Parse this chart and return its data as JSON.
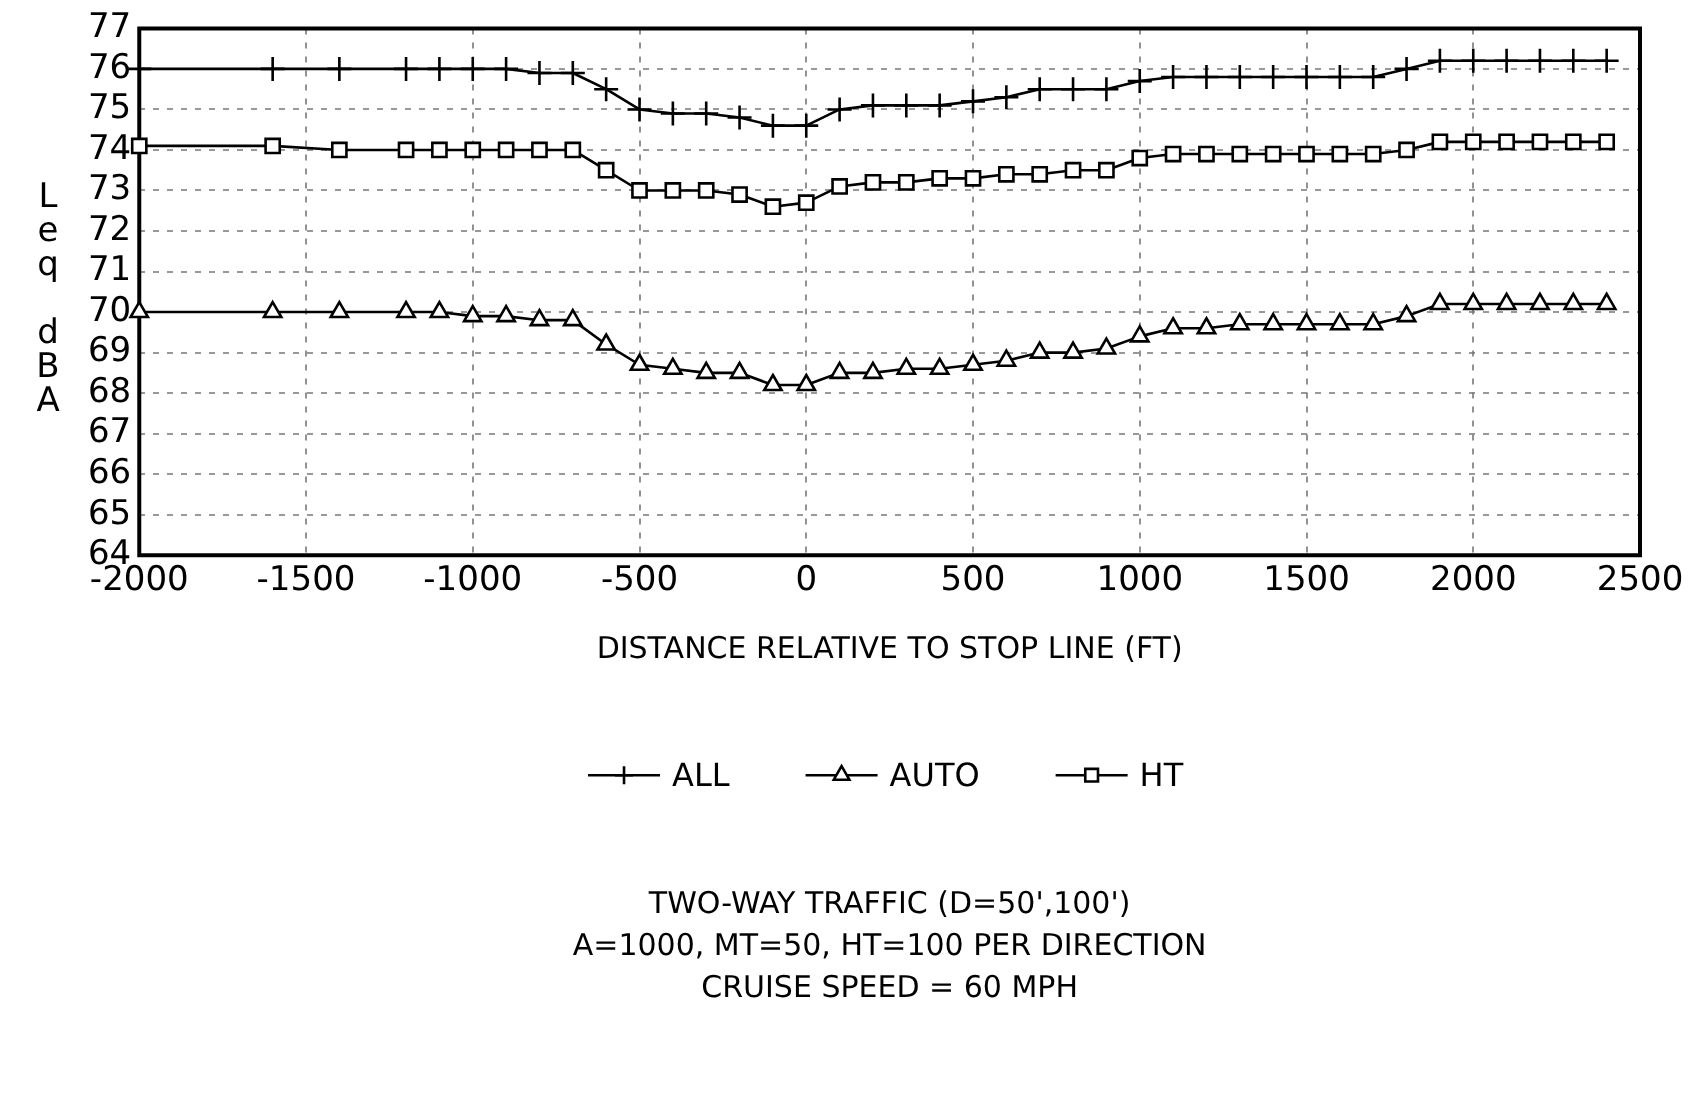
{
  "chart_data": {
    "type": "line",
    "xlabel": "DISTANCE RELATIVE TO STOP LINE (FT)",
    "ylabel": "Leq dBA",
    "x": [
      -2000,
      -1600,
      -1400,
      -1200,
      -1100,
      -1000,
      -900,
      -800,
      -700,
      -600,
      -500,
      -400,
      -300,
      -200,
      -100,
      0,
      100,
      200,
      300,
      400,
      500,
      600,
      700,
      800,
      900,
      1000,
      1100,
      1200,
      1300,
      1400,
      1500,
      1600,
      1700,
      1800,
      1900,
      2000,
      2100,
      2200,
      2300,
      2400
    ],
    "series": [
      {
        "name": "ALL",
        "color": "#000000",
        "marker": "cross",
        "values": [
          76.0,
          76.0,
          76.0,
          76.0,
          76.0,
          76.0,
          76.0,
          75.9,
          75.9,
          75.5,
          75.0,
          74.9,
          74.9,
          74.8,
          74.6,
          74.6,
          75.0,
          75.1,
          75.1,
          75.1,
          75.2,
          75.3,
          75.5,
          75.5,
          75.5,
          75.7,
          75.8,
          75.8,
          75.8,
          75.8,
          75.8,
          75.8,
          75.8,
          76.0,
          76.2,
          76.2,
          76.2,
          76.2,
          76.2,
          76.2
        ]
      },
      {
        "name": "AUTO",
        "color": "#000000",
        "marker": "triangle",
        "values": [
          70.0,
          70.0,
          70.0,
          70.0,
          70.0,
          69.9,
          69.9,
          69.8,
          69.8,
          69.2,
          68.7,
          68.6,
          68.5,
          68.5,
          68.2,
          68.2,
          68.5,
          68.5,
          68.6,
          68.6,
          68.7,
          68.8,
          69.0,
          69.0,
          69.1,
          69.4,
          69.6,
          69.6,
          69.7,
          69.7,
          69.7,
          69.7,
          69.7,
          69.9,
          70.2,
          70.2,
          70.2,
          70.2,
          70.2,
          70.2
        ]
      },
      {
        "name": "HT",
        "color": "#000000",
        "marker": "square",
        "values": [
          74.1,
          74.1,
          74.0,
          74.0,
          74.0,
          74.0,
          74.0,
          74.0,
          74.0,
          73.5,
          73.0,
          73.0,
          73.0,
          72.9,
          72.6,
          72.7,
          73.1,
          73.2,
          73.2,
          73.3,
          73.3,
          73.4,
          73.4,
          73.5,
          73.5,
          73.8,
          73.9,
          73.9,
          73.9,
          73.9,
          73.9,
          73.9,
          73.9,
          74.0,
          74.2,
          74.2,
          74.2,
          74.2,
          74.2,
          74.2
        ]
      }
    ],
    "xlim": [
      -2000,
      2500
    ],
    "xticks": [
      -2000,
      -1500,
      -1000,
      -500,
      0,
      500,
      1000,
      1500,
      2000,
      2500
    ],
    "ylim": [
      64,
      77
    ],
    "yticks": [
      64,
      65,
      66,
      67,
      68,
      69,
      70,
      71,
      72,
      73,
      74,
      75,
      76,
      77
    ],
    "grid": true,
    "line_style": "solid",
    "legend": "bottom",
    "annotations": [
      "TWO-WAY TRAFFIC (D=50',100')",
      "A=1000, MT=50, HT=100 PER DIRECTION",
      "CRUISE SPEED = 60 MPH"
    ]
  }
}
